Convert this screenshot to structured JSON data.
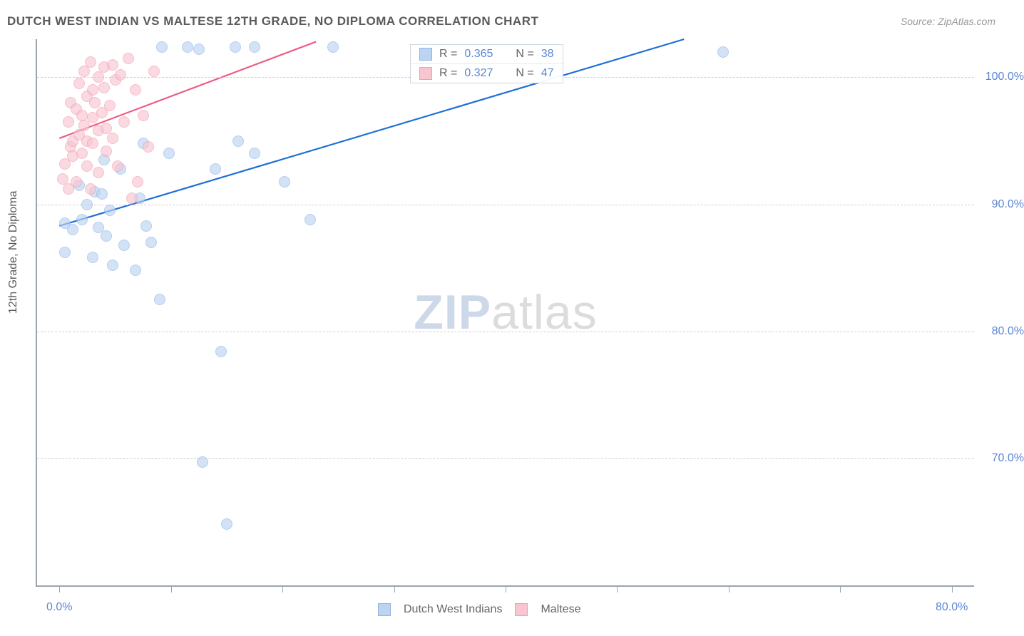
{
  "title": "DUTCH WEST INDIAN VS MALTESE 12TH GRADE, NO DIPLOMA CORRELATION CHART",
  "source": "Source: ZipAtlas.com",
  "watermark": {
    "bold": "ZIP",
    "light": "atlas"
  },
  "chart": {
    "type": "scatter",
    "y_axis_title": "12th Grade, No Diploma",
    "background_color": "#ffffff",
    "grid_color": "#cfcfcf",
    "axis_color": "#9aa4af",
    "tick_label_color": "#5b86d4",
    "title_color": "#5a5a5a",
    "title_fontsize": 17,
    "tick_fontsize": 16,
    "xlim": [
      -2,
      82
    ],
    "ylim": [
      60,
      103
    ],
    "x_ticks": [
      0,
      10,
      20,
      30,
      40,
      50,
      60,
      70,
      80
    ],
    "x_tick_labels": {
      "0": "0.0%",
      "80": "80.0%"
    },
    "y_ticks": [
      70,
      80,
      90,
      100
    ],
    "y_tick_labels": {
      "70": "70.0%",
      "80": "80.0%",
      "90": "90.0%",
      "100": "100.0%"
    },
    "series": {
      "blue": {
        "label": "Dutch West Indians",
        "stroke": "#8fb4e8",
        "fill": "#bcd3f1",
        "fill_opacity": 0.65,
        "marker_radius": 8,
        "line_color": "#1f6fd6",
        "line_width": 2.2,
        "trend": {
          "x1": 0,
          "y1": 88.3,
          "x2": 56,
          "y2": 103
        },
        "R": "0.365",
        "N": "38",
        "points": [
          [
            0.5,
            86.2
          ],
          [
            0.5,
            88.5
          ],
          [
            1.2,
            88.0
          ],
          [
            1.8,
            91.5
          ],
          [
            2.0,
            88.8
          ],
          [
            2.5,
            90.0
          ],
          [
            3.0,
            85.8
          ],
          [
            3.2,
            91.0
          ],
          [
            3.5,
            88.2
          ],
          [
            3.8,
            90.8
          ],
          [
            4.0,
            93.5
          ],
          [
            4.2,
            87.5
          ],
          [
            4.5,
            89.5
          ],
          [
            4.8,
            85.2
          ],
          [
            5.5,
            92.8
          ],
          [
            5.8,
            86.8
          ],
          [
            6.8,
            84.8
          ],
          [
            7.2,
            90.5
          ],
          [
            7.5,
            94.8
          ],
          [
            7.8,
            88.3
          ],
          [
            8.2,
            87.0
          ],
          [
            9.0,
            82.5
          ],
          [
            9.8,
            94.0
          ],
          [
            9.2,
            102.4
          ],
          [
            11.5,
            102.4
          ],
          [
            12.5,
            102.2
          ],
          [
            12.8,
            69.7
          ],
          [
            14.5,
            78.4
          ],
          [
            14.0,
            92.8
          ],
          [
            15.0,
            64.8
          ],
          [
            15.8,
            102.4
          ],
          [
            16.0,
            95.0
          ],
          [
            17.5,
            94.0
          ],
          [
            17.5,
            102.4
          ],
          [
            20.2,
            91.8
          ],
          [
            22.5,
            88.8
          ],
          [
            24.5,
            102.4
          ],
          [
            59.5,
            102.0
          ]
        ]
      },
      "pink": {
        "label": "Maltese",
        "stroke": "#f29db0",
        "fill": "#f8c5d1",
        "fill_opacity": 0.65,
        "marker_radius": 8,
        "line_color": "#ed5e84",
        "line_width": 2.2,
        "trend": {
          "x1": 0,
          "y1": 95.2,
          "x2": 23,
          "y2": 102.8
        },
        "R": "0.327",
        "N": "47",
        "points": [
          [
            0.3,
            92.0
          ],
          [
            0.5,
            93.2
          ],
          [
            0.8,
            91.2
          ],
          [
            0.8,
            96.5
          ],
          [
            1.0,
            94.5
          ],
          [
            1.0,
            98.0
          ],
          [
            1.2,
            95.0
          ],
          [
            1.2,
            93.8
          ],
          [
            1.5,
            97.5
          ],
          [
            1.5,
            91.8
          ],
          [
            1.8,
            95.5
          ],
          [
            1.8,
            99.5
          ],
          [
            2.0,
            97.0
          ],
          [
            2.0,
            94.0
          ],
          [
            2.2,
            100.5
          ],
          [
            2.2,
            96.2
          ],
          [
            2.5,
            95.0
          ],
          [
            2.5,
            93.0
          ],
          [
            2.5,
            98.5
          ],
          [
            2.8,
            91.2
          ],
          [
            2.8,
            101.2
          ],
          [
            3.0,
            99.0
          ],
          [
            3.0,
            96.8
          ],
          [
            3.0,
            94.8
          ],
          [
            3.2,
            98.0
          ],
          [
            3.5,
            100.0
          ],
          [
            3.5,
            95.8
          ],
          [
            3.5,
            92.5
          ],
          [
            3.8,
            97.2
          ],
          [
            4.0,
            100.8
          ],
          [
            4.0,
            99.2
          ],
          [
            4.2,
            96.0
          ],
          [
            4.2,
            94.2
          ],
          [
            4.5,
            97.8
          ],
          [
            4.8,
            101.0
          ],
          [
            4.8,
            95.2
          ],
          [
            5.0,
            99.8
          ],
          [
            5.2,
            93.0
          ],
          [
            5.5,
            100.2
          ],
          [
            5.8,
            96.5
          ],
          [
            6.2,
            101.5
          ],
          [
            6.5,
            90.5
          ],
          [
            6.8,
            99.0
          ],
          [
            7.0,
            91.8
          ],
          [
            7.5,
            97.0
          ],
          [
            8.0,
            94.5
          ],
          [
            8.5,
            100.5
          ]
        ]
      }
    },
    "legend_top": {
      "border_color": "#d0d6df",
      "rows": [
        {
          "swatch_fill": "#bcd3f1",
          "swatch_stroke": "#8fb4e8",
          "R_label": "R =",
          "R_val": "0.365",
          "N_label": "N =",
          "N_val": "38"
        },
        {
          "swatch_fill": "#f8c5d1",
          "swatch_stroke": "#f29db0",
          "R_label": "R =",
          "R_val": "0.327",
          "N_label": "N =",
          "N_val": "47"
        }
      ]
    },
    "legend_bottom": [
      {
        "swatch_fill": "#bcd3f1",
        "swatch_stroke": "#8fb4e8",
        "label": "Dutch West Indians"
      },
      {
        "swatch_fill": "#f8c5d1",
        "swatch_stroke": "#f29db0",
        "label": "Maltese"
      }
    ]
  }
}
